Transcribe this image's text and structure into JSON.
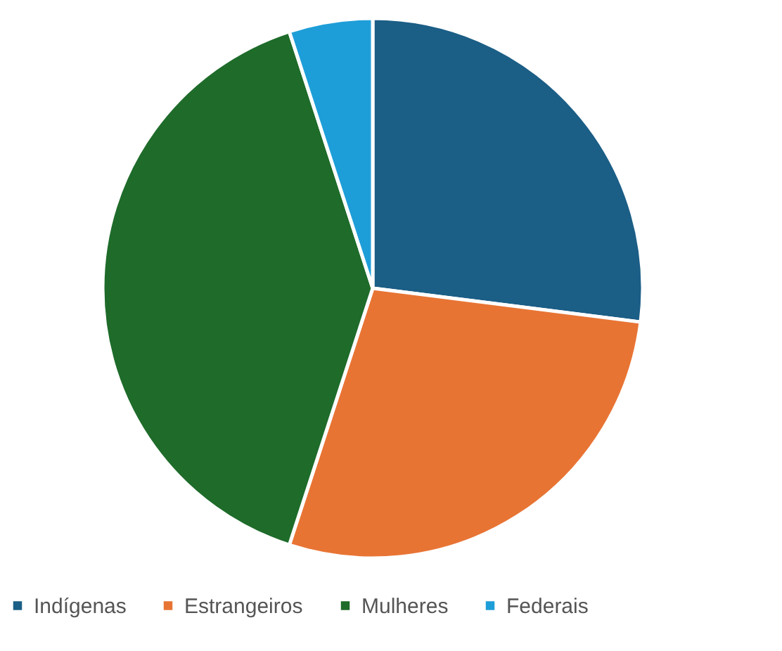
{
  "chart_data": {
    "type": "pie",
    "categories": [
      "Indígenas",
      "Estrangeiros",
      "Mulheres",
      "Federais"
    ],
    "values": [
      27,
      28,
      40,
      5
    ],
    "colors": [
      "#1b5e86",
      "#e87434",
      "#1e6b2a",
      "#1e9ed8"
    ],
    "legend": "bottom"
  }
}
